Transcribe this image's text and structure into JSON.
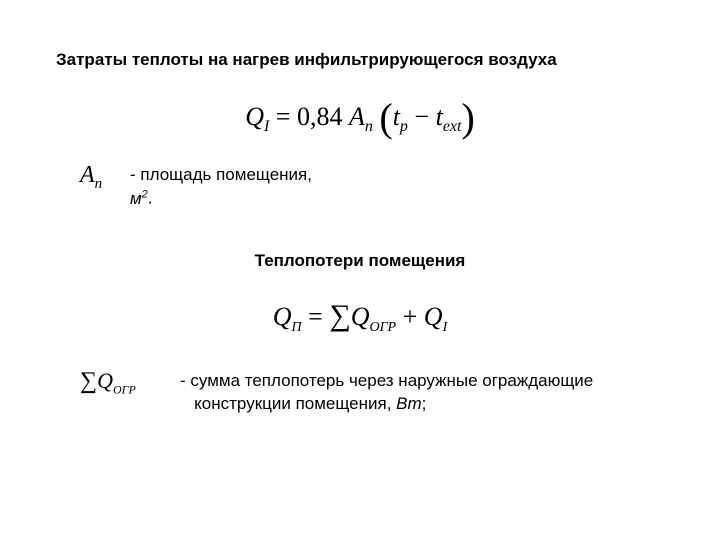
{
  "colors": {
    "background": "#ffffff",
    "text": "#000000"
  },
  "heading1": "Затраты теплоты на нагрев инфильтрирующегося воздуха",
  "formula1": {
    "lhs_var": "Q",
    "lhs_sub": "I",
    "eq": " = ",
    "coeff": "0,84 ",
    "a_var": "A",
    "a_sub": "п",
    "lp": "(",
    "t1_var": "t",
    "t1_sub": "p",
    "minus": " − ",
    "t2_var": "t",
    "t2_sub": "ext",
    "rp": ")"
  },
  "def1": {
    "sym_var": "A",
    "sym_sub": "п",
    "text_line1": "- площадь помещения,",
    "text_line2_pre": "м",
    "text_line2_sup": "2",
    "text_line2_post": "."
  },
  "heading2": "Теплопотери помещения",
  "formula2": {
    "lhs_var": "Q",
    "lhs_sub": "П",
    "eq": " = ",
    "sum1": "∑",
    "q1_var": "Q",
    "q1_sub": "ОГР",
    "plus": " + ",
    "q2_var": "Q",
    "q2_sub": "I"
  },
  "def2": {
    "sum": "∑",
    "sym_var": "Q",
    "sym_sub": "ОГР",
    "dash": "-  ",
    "text_line1": "сумма теплопотерь через наружные ограждающие",
    "text_line2_pre": "конструкции помещения, ",
    "text_line2_unit": "Вт",
    "text_line2_post": ";"
  }
}
